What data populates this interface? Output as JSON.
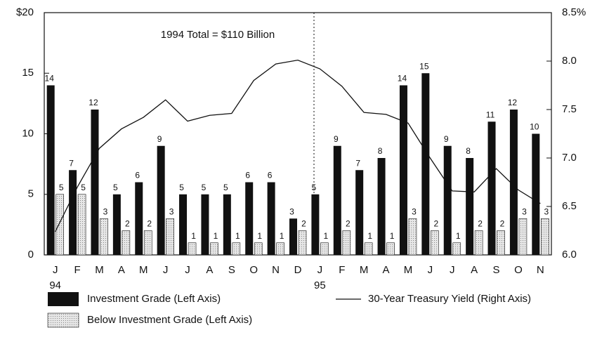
{
  "chart_data": {
    "type": "bar",
    "annotation": "1994 Total = $110 Billion",
    "categories": [
      "J",
      "F",
      "M",
      "A",
      "M",
      "J",
      "J",
      "A",
      "S",
      "O",
      "N",
      "D",
      "J",
      "F",
      "M",
      "A",
      "M",
      "J",
      "J",
      "A",
      "S",
      "O",
      "N"
    ],
    "year_labels": [
      "94",
      null,
      null,
      null,
      null,
      null,
      null,
      null,
      null,
      null,
      null,
      null,
      "95",
      null,
      null,
      null,
      null,
      null,
      null,
      null,
      null,
      null,
      null
    ],
    "series": [
      {
        "name": "Investment Grade (Left Axis)",
        "color": "#111111",
        "type": "bar",
        "values": [
          14,
          7,
          12,
          5,
          6,
          9,
          5,
          5,
          5,
          6,
          6,
          3,
          5,
          9,
          7,
          8,
          14,
          15,
          9,
          8,
          11,
          12,
          10
        ]
      },
      {
        "name": "Below Investment Grade (Left Axis)",
        "color": "#d8d8d8",
        "type": "bar",
        "values": [
          5,
          5,
          3,
          2,
          2,
          3,
          1,
          1,
          1,
          1,
          1,
          2,
          1,
          2,
          1,
          1,
          3,
          2,
          1,
          2,
          2,
          3,
          3
        ]
      },
      {
        "name": "30-Year Treasury Yield (Right Axis)",
        "color": "#111111",
        "type": "line",
        "axis": "y2",
        "values": [
          6.24,
          6.7,
          7.1,
          7.3,
          7.42,
          7.6,
          7.38,
          7.44,
          7.46,
          7.8,
          7.97,
          8.01,
          7.92,
          7.74,
          7.47,
          7.45,
          7.36,
          7.0,
          6.66,
          6.65,
          6.89,
          6.67,
          6.53
        ]
      }
    ],
    "ylim": [
      0,
      20
    ],
    "yticks": [
      0,
      5,
      10,
      15,
      {
        "value": 20,
        "label": "$20"
      }
    ],
    "y2lim": [
      6,
      8.5
    ],
    "y2ticks": [
      {
        "value": 6,
        "label": "6.0"
      },
      {
        "value": 6.5,
        "label": "6.5"
      },
      {
        "value": 7,
        "label": "7.0"
      },
      {
        "value": 7.5,
        "label": "7.5"
      },
      {
        "value": 8,
        "label": "8.0"
      },
      {
        "value": 8.5,
        "label": "8.5%"
      }
    ]
  }
}
